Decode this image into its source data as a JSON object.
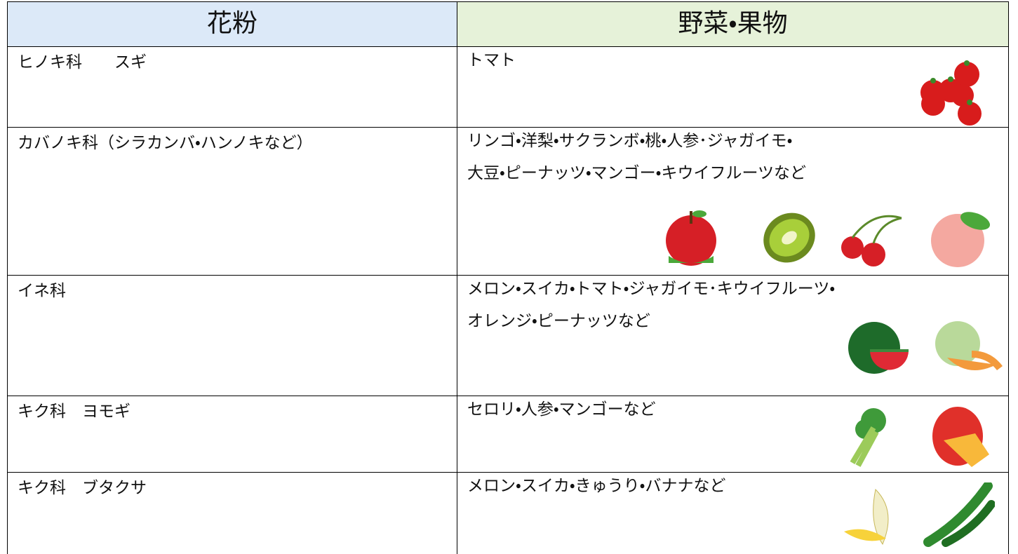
{
  "table": {
    "header": [
      "花粉",
      "野菜・果物"
    ],
    "rows": [
      {
        "pollen": "ヒノキ科　　スギ",
        "foods": [
          "トマト"
        ]
      },
      {
        "pollen": "カバノキ科（シラカンバ・ハンノキなど）",
        "foods": [
          "リンゴ・洋梨・サクランボ・桃・人参･ジャガイモ・",
          "大豆・ピーナッツ・マンゴー・キウイフルーツなど"
        ]
      },
      {
        "pollen": "イネ科",
        "foods": [
          "メロン・スイカ・トマト・ジャガイモ･キウイフルーツ・",
          "オレンジ・ピーナッツなど"
        ]
      },
      {
        "pollen": "キク科　ヨモギ",
        "foods": [
          "セロリ・人参・マンゴーなど"
        ]
      },
      {
        "pollen": "キク科　ブタクサ",
        "foods": [
          "メロン・スイカ・きゅうり・バナナなど"
        ]
      }
    ]
  }
}
